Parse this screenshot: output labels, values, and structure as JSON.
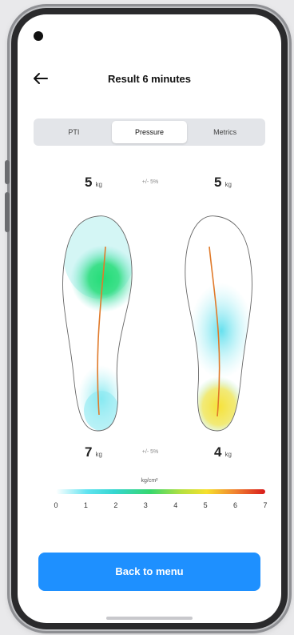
{
  "header": {
    "title": "Result 6 minutes"
  },
  "tabs": [
    {
      "label": "PTI",
      "active": false
    },
    {
      "label": "Pressure",
      "active": true
    },
    {
      "label": "Metrics",
      "active": false
    }
  ],
  "left_foot": {
    "top_weight": "5",
    "bottom_weight": "7",
    "unit": "kg"
  },
  "right_foot": {
    "top_weight": "5",
    "bottom_weight": "4",
    "unit": "kg"
  },
  "tolerance": {
    "top": "+/- 5%",
    "bottom": "+/- 5%"
  },
  "scale": {
    "unit_label": "kg/cm²",
    "ticks": [
      "0",
      "1",
      "2",
      "3",
      "4",
      "5",
      "6",
      "7"
    ]
  },
  "cta": {
    "label": "Back to menu"
  },
  "colors": {
    "accent": "#1e90ff"
  },
  "icons": {
    "back": "back-arrow-icon"
  }
}
